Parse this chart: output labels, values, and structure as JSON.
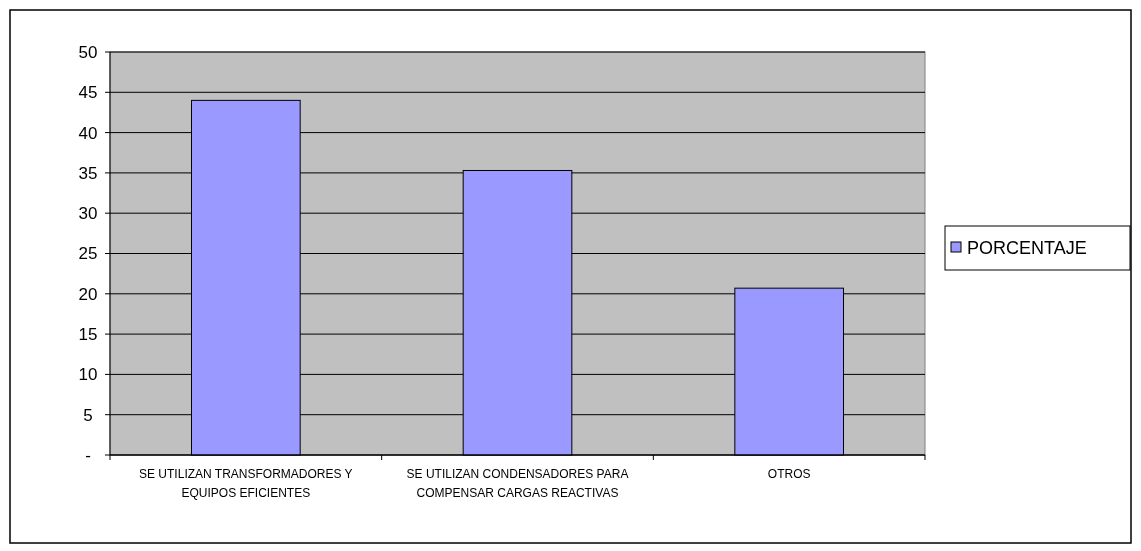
{
  "chart_data": {
    "type": "bar",
    "categories": [
      "SE UTILIZAN TRANSFORMADORES Y EQUIPOS EFICIENTES",
      "SE UTILIZAN CONDENSADORES PARA COMPENSAR CARGAS REACTIVAS",
      "OTROS"
    ],
    "series": [
      {
        "name": "PORCENTAJE",
        "color": "#9999ff",
        "values": [
          44,
          35.3,
          20.7
        ]
      }
    ],
    "ylim": [
      0,
      50
    ],
    "yticks": [
      {
        "value": 0,
        "label": "-"
      },
      5,
      10,
      15,
      20,
      25,
      30,
      35,
      40,
      45,
      50
    ],
    "grid": "y",
    "legend": "right"
  }
}
